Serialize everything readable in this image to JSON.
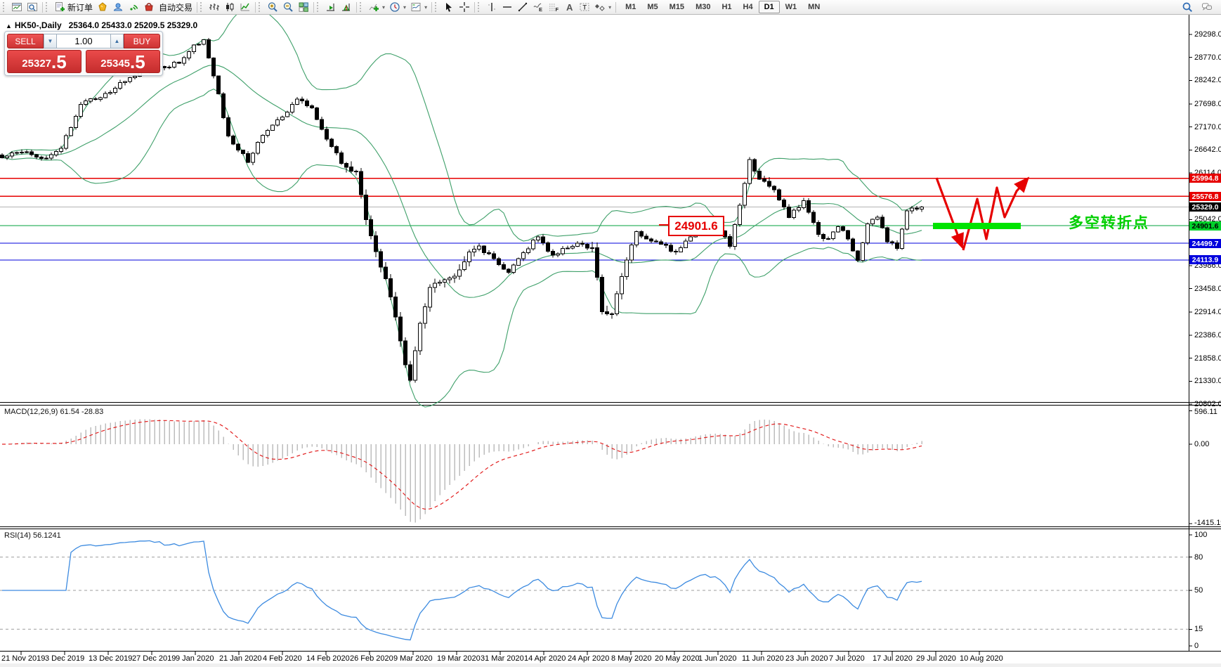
{
  "toolbar": {
    "groups": [
      {
        "items": [
          {
            "name": "new-chart",
            "icon": "chartwin"
          },
          {
            "name": "profiles",
            "icon": "magwin"
          }
        ]
      },
      {
        "items": [
          {
            "name": "new-order",
            "icon": "docplus",
            "label": "新订单"
          },
          {
            "name": "metaquotes",
            "icon": "nugget"
          },
          {
            "name": "community",
            "icon": "clouduser"
          },
          {
            "name": "signals",
            "icon": "signal"
          },
          {
            "name": "market",
            "icon": "basket"
          },
          {
            "name": "autotrading",
            "icon": "none",
            "label": "自动交易"
          }
        ]
      },
      {
        "items": [
          {
            "name": "bar-chart-mode",
            "icon": "bars"
          },
          {
            "name": "candle-chart-mode",
            "icon": "candles"
          },
          {
            "name": "line-chart-mode",
            "icon": "linechart"
          }
        ]
      },
      {
        "items": [
          {
            "name": "zoom-in",
            "icon": "zoomin"
          },
          {
            "name": "zoom-out",
            "icon": "zoomout"
          },
          {
            "name": "tile-windows",
            "icon": "tiles"
          }
        ]
      },
      {
        "items": [
          {
            "name": "auto-scroll",
            "icon": "autoscroll"
          },
          {
            "name": "chart-shift",
            "icon": "shift"
          }
        ]
      },
      {
        "items": [
          {
            "name": "indicators",
            "icon": "indplus",
            "dropdown": true
          },
          {
            "name": "periods",
            "icon": "clock",
            "dropdown": true
          },
          {
            "name": "templates",
            "icon": "template",
            "dropdown": true
          }
        ]
      },
      {
        "items": [
          {
            "name": "cursor-tool",
            "icon": "cursor"
          },
          {
            "name": "crosshair-tool",
            "icon": "crosshair"
          }
        ]
      },
      {
        "items": [
          {
            "name": "vline-tool",
            "icon": "vline"
          },
          {
            "name": "hline-tool",
            "icon": "hline"
          },
          {
            "name": "trendline-tool",
            "icon": "trend"
          },
          {
            "name": "channel-tool",
            "icon": "ellipseE"
          },
          {
            "name": "fibonacci-tool",
            "icon": "fibo"
          },
          {
            "name": "text-tool",
            "icon": "textA"
          },
          {
            "name": "label-tool",
            "icon": "labelT"
          },
          {
            "name": "arrows-tool",
            "icon": "shapes",
            "dropdown": true
          }
        ]
      }
    ],
    "timeframes": [
      "M1",
      "M5",
      "M15",
      "M30",
      "H1",
      "H4",
      "D1",
      "W1",
      "MN"
    ],
    "active_timeframe": "D1",
    "right_items": [
      {
        "name": "search",
        "icon": "searchBlue"
      },
      {
        "name": "chat",
        "icon": "chat"
      }
    ]
  },
  "chart": {
    "header_arrow": "▲",
    "header_symbol": "HK50-,Daily",
    "header_ohlc": "25364.0 25433.0 25209.5 25329.0"
  },
  "trade_panel": {
    "sell_label": "SELL",
    "buy_label": "BUY",
    "volume": "1.00",
    "spinner_down": "▼",
    "spinner_up": "▲",
    "sell_price_main": "25327",
    "sell_price_frac": ".5",
    "buy_price_main": "25345",
    "buy_price_frac": ".5"
  },
  "price_axis": {
    "ticks": [
      29298.0,
      28770.0,
      28242.0,
      27698.0,
      27170.0,
      26642.0,
      26114.0,
      25042.0,
      23986.0,
      23458.0,
      22914.0,
      22386.0,
      21858.0,
      21330.0,
      20802.0
    ],
    "levels": [
      {
        "price": 25994.8,
        "label": "25994.8",
        "line": "#e60000",
        "bg": "#e60000",
        "fg": "#ffffff",
        "width": 1.5
      },
      {
        "price": 25576.8,
        "label": "25576.8",
        "line": "#e60000",
        "bg": "#e60000",
        "fg": "#ffffff",
        "width": 1.5
      },
      {
        "price": 25329.0,
        "label": "25329.0",
        "line": "#b4b4b4",
        "bg": "#000000",
        "fg": "#ffffff",
        "width": 1
      },
      {
        "price": 24901.6,
        "label": "24901.6",
        "line": "#00a13c",
        "bg": "#00d02a",
        "fg": "#000000",
        "width": 1
      },
      {
        "price": 24499.7,
        "label": "24499.7",
        "line": "#0000dd",
        "bg": "#0000dd",
        "fg": "#ffffff",
        "width": 1
      },
      {
        "price": 24113.9,
        "label": "24113.9",
        "line": "#0000dd",
        "bg": "#0000dd",
        "fg": "#ffffff",
        "width": 1
      }
    ]
  },
  "macd_panel": {
    "label": "MACD(12,26,9) 61.54 -28.83",
    "axis_labels": [
      "596.11",
      "0.00",
      "-1415.19"
    ]
  },
  "rsi_panel": {
    "label": "RSI(14) 56.1241",
    "axis_labels": [
      "100",
      "80",
      "50",
      "15",
      "0"
    ],
    "grid_levels": [
      80,
      50,
      15
    ]
  },
  "time_axis": {
    "labels": [
      "21 Nov 2019",
      "3 Dec 2019",
      "13 Dec 2019",
      "27 Dec 2019",
      "9 Jan 2020",
      "21 Jan 2020",
      "4 Feb 2020",
      "14 Feb 2020",
      "26 Feb 2020",
      "9 Mar 2020",
      "19 Mar 2020",
      "31 Mar 2020",
      "14 Apr 2020",
      "24 Apr 2020",
      "8 May 2020",
      "20 May 2020",
      "1 Jun 2020",
      "11 Jun 2020",
      "23 Jun 2020",
      "7 Jul 2020",
      "17 Jul 2020",
      "29 Jul 2020",
      "10 Aug 2020"
    ]
  },
  "annotations": {
    "level_label": "24901.6",
    "turning_label": "多空转折点",
    "arrow_color": "#e60000",
    "highlight_color": "#00e400"
  },
  "chart_data": {
    "type": "candlestick",
    "symbol": "HK50",
    "timeframe": "Daily",
    "ohlc_display": {
      "open": 25364.0,
      "high": 25433.0,
      "low": 25209.5,
      "close": 25329.0
    },
    "bid": 25327.5,
    "ask": 25345.5,
    "candle_count": 188,
    "price_range_top": 29298.0,
    "price_range_bottom": 20802.0,
    "close_anchors": [
      [
        0,
        26466
      ],
      [
        4,
        26595
      ],
      [
        8,
        26444
      ],
      [
        12,
        26680
      ],
      [
        16,
        27690
      ],
      [
        20,
        27843
      ],
      [
        24,
        28189
      ],
      [
        28,
        28451
      ],
      [
        32,
        28561
      ],
      [
        36,
        28638
      ],
      [
        39,
        29056
      ],
      [
        41,
        29174
      ],
      [
        43,
        28341
      ],
      [
        46,
        26966
      ],
      [
        50,
        26356
      ],
      [
        53,
        26982
      ],
      [
        57,
        27404
      ],
      [
        60,
        27816
      ],
      [
        63,
        27609
      ],
      [
        66,
        26893
      ],
      [
        69,
        26338
      ],
      [
        72,
        26146
      ],
      [
        74,
        25040
      ],
      [
        76,
        24309
      ],
      [
        78,
        23684
      ],
      [
        80,
        22805
      ],
      [
        82,
        21709
      ],
      [
        83,
        21350
      ],
      [
        85,
        22663
      ],
      [
        87,
        23484
      ],
      [
        89,
        23603
      ],
      [
        92,
        23740
      ],
      [
        95,
        24300
      ],
      [
        97,
        24435
      ],
      [
        100,
        24145
      ],
      [
        103,
        23831
      ],
      [
        106,
        24280
      ],
      [
        109,
        24643
      ],
      [
        112,
        24230
      ],
      [
        115,
        24385
      ],
      [
        118,
        24480
      ],
      [
        120,
        24399
      ],
      [
        122,
        22930
      ],
      [
        124,
        22880
      ],
      [
        126,
        23732
      ],
      [
        129,
        24770
      ],
      [
        132,
        24550
      ],
      [
        134,
        24480
      ],
      [
        137,
        24301
      ],
      [
        140,
        24643
      ],
      [
        143,
        24907
      ],
      [
        146,
        24781
      ],
      [
        148,
        24427
      ],
      [
        150,
        25373
      ],
      [
        152,
        26420
      ],
      [
        154,
        25975
      ],
      [
        157,
        25727
      ],
      [
        160,
        25089
      ],
      [
        163,
        25477
      ],
      [
        166,
        24705
      ],
      [
        168,
        24603
      ],
      [
        170,
        24883
      ],
      [
        172,
        24595
      ],
      [
        174,
        24107
      ],
      [
        176,
        24946
      ],
      [
        178,
        25102
      ],
      [
        180,
        24532
      ],
      [
        182,
        24377
      ],
      [
        184,
        25244
      ],
      [
        186,
        25281
      ],
      [
        187,
        25329
      ]
    ],
    "indicators": {
      "bollinger": {
        "period": 20,
        "deviation": 2,
        "color": "#3fa06a"
      },
      "macd": {
        "fast": 12,
        "slow": 26,
        "signal": 9,
        "value": 61.54,
        "signal_value": -28.83,
        "bar_color": "#bdbdbd",
        "signal_color": "#e22020"
      },
      "rsi": {
        "period": 14,
        "value": 56.1241,
        "color": "#3d8be0"
      }
    }
  }
}
